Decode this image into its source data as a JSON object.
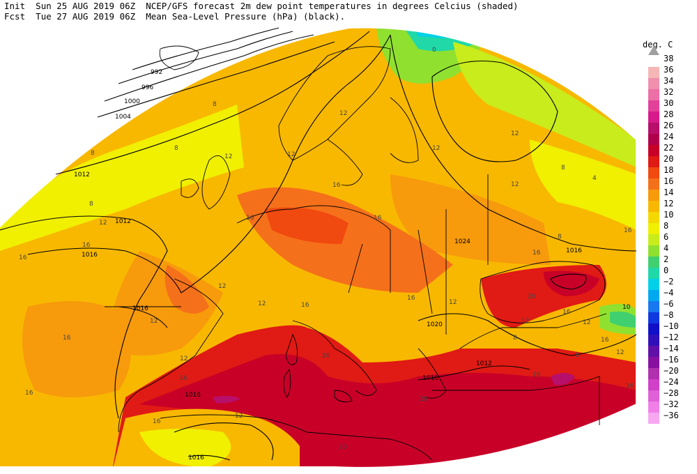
{
  "header": {
    "init_prefix": "Init",
    "init_time": "Sun 25 AUG 2019 06Z",
    "fcst_prefix": "Fcst",
    "fcst_time": "Tue 27 AUG 2019 06Z",
    "line1_desc": "NCEP/GFS forecast 2m dew point temperatures in degrees Celcius (shaded)",
    "line2_desc": "Mean Sea-Level Pressure (hPa) (black)."
  },
  "legend": {
    "unit": "deg. C",
    "entries": [
      {
        "label": "38",
        "color": "#a9a9a9"
      },
      {
        "label": "36",
        "color": "#f5b6b6"
      },
      {
        "label": "34",
        "color": "#f08fae"
      },
      {
        "label": "32",
        "color": "#ec6fa6"
      },
      {
        "label": "30",
        "color": "#e3409a"
      },
      {
        "label": "28",
        "color": "#d81b8a"
      },
      {
        "label": "26",
        "color": "#b70f6a"
      },
      {
        "label": "24",
        "color": "#b0004a"
      },
      {
        "label": "22",
        "color": "#c80028"
      },
      {
        "label": "20",
        "color": "#e01a14"
      },
      {
        "label": "18",
        "color": "#f04a10"
      },
      {
        "label": "16",
        "color": "#f5701a"
      },
      {
        "label": "14",
        "color": "#f79a0c"
      },
      {
        "label": "12",
        "color": "#f8b800"
      },
      {
        "label": "10",
        "color": "#f5d800"
      },
      {
        "label": "8",
        "color": "#f0f000"
      },
      {
        "label": "6",
        "color": "#c8ec1c"
      },
      {
        "label": "4",
        "color": "#90e030"
      },
      {
        "label": "2",
        "color": "#40d070"
      },
      {
        "label": "0",
        "color": "#20d8a8"
      },
      {
        "label": "−2",
        "color": "#00d0e8"
      },
      {
        "label": "−4",
        "color": "#00a8f0"
      },
      {
        "label": "−6",
        "color": "#1878f0"
      },
      {
        "label": "−8",
        "color": "#1038e0"
      },
      {
        "label": "−10",
        "color": "#1010c8"
      },
      {
        "label": "−12",
        "color": "#3010b8"
      },
      {
        "label": "−14",
        "color": "#6010a8"
      },
      {
        "label": "−16",
        "color": "#8810a0"
      },
      {
        "label": "−20",
        "color": "#b030b0"
      },
      {
        "label": "−24",
        "color": "#d040c8"
      },
      {
        "label": "−28",
        "color": "#e060d8"
      },
      {
        "label": "−32",
        "color": "#f080e8"
      },
      {
        "label": "−36",
        "color": "#f8a8f0"
      }
    ]
  },
  "pressure_labels": [
    "992",
    "996",
    "1000",
    "1004",
    "1012",
    "1012",
    "1016",
    "1016",
    "1024",
    "1016",
    "1020",
    "1016",
    "1012",
    "1016",
    "1016",
    "10"
  ],
  "dewpoint_labels": [
    "8",
    "8",
    "8",
    "8",
    "8",
    "12",
    "12",
    "12",
    "12",
    "12",
    "12",
    "12",
    "12",
    "12",
    "12",
    "12",
    "16",
    "16",
    "16",
    "16",
    "16",
    "16",
    "16",
    "16",
    "16",
    "16",
    "16",
    "16",
    "16",
    "20",
    "20",
    "20",
    "20",
    "0",
    "4",
    "8",
    "8",
    "8",
    "12",
    "12",
    "12",
    "12",
    "12",
    "16",
    "16",
    "16",
    "16"
  ]
}
